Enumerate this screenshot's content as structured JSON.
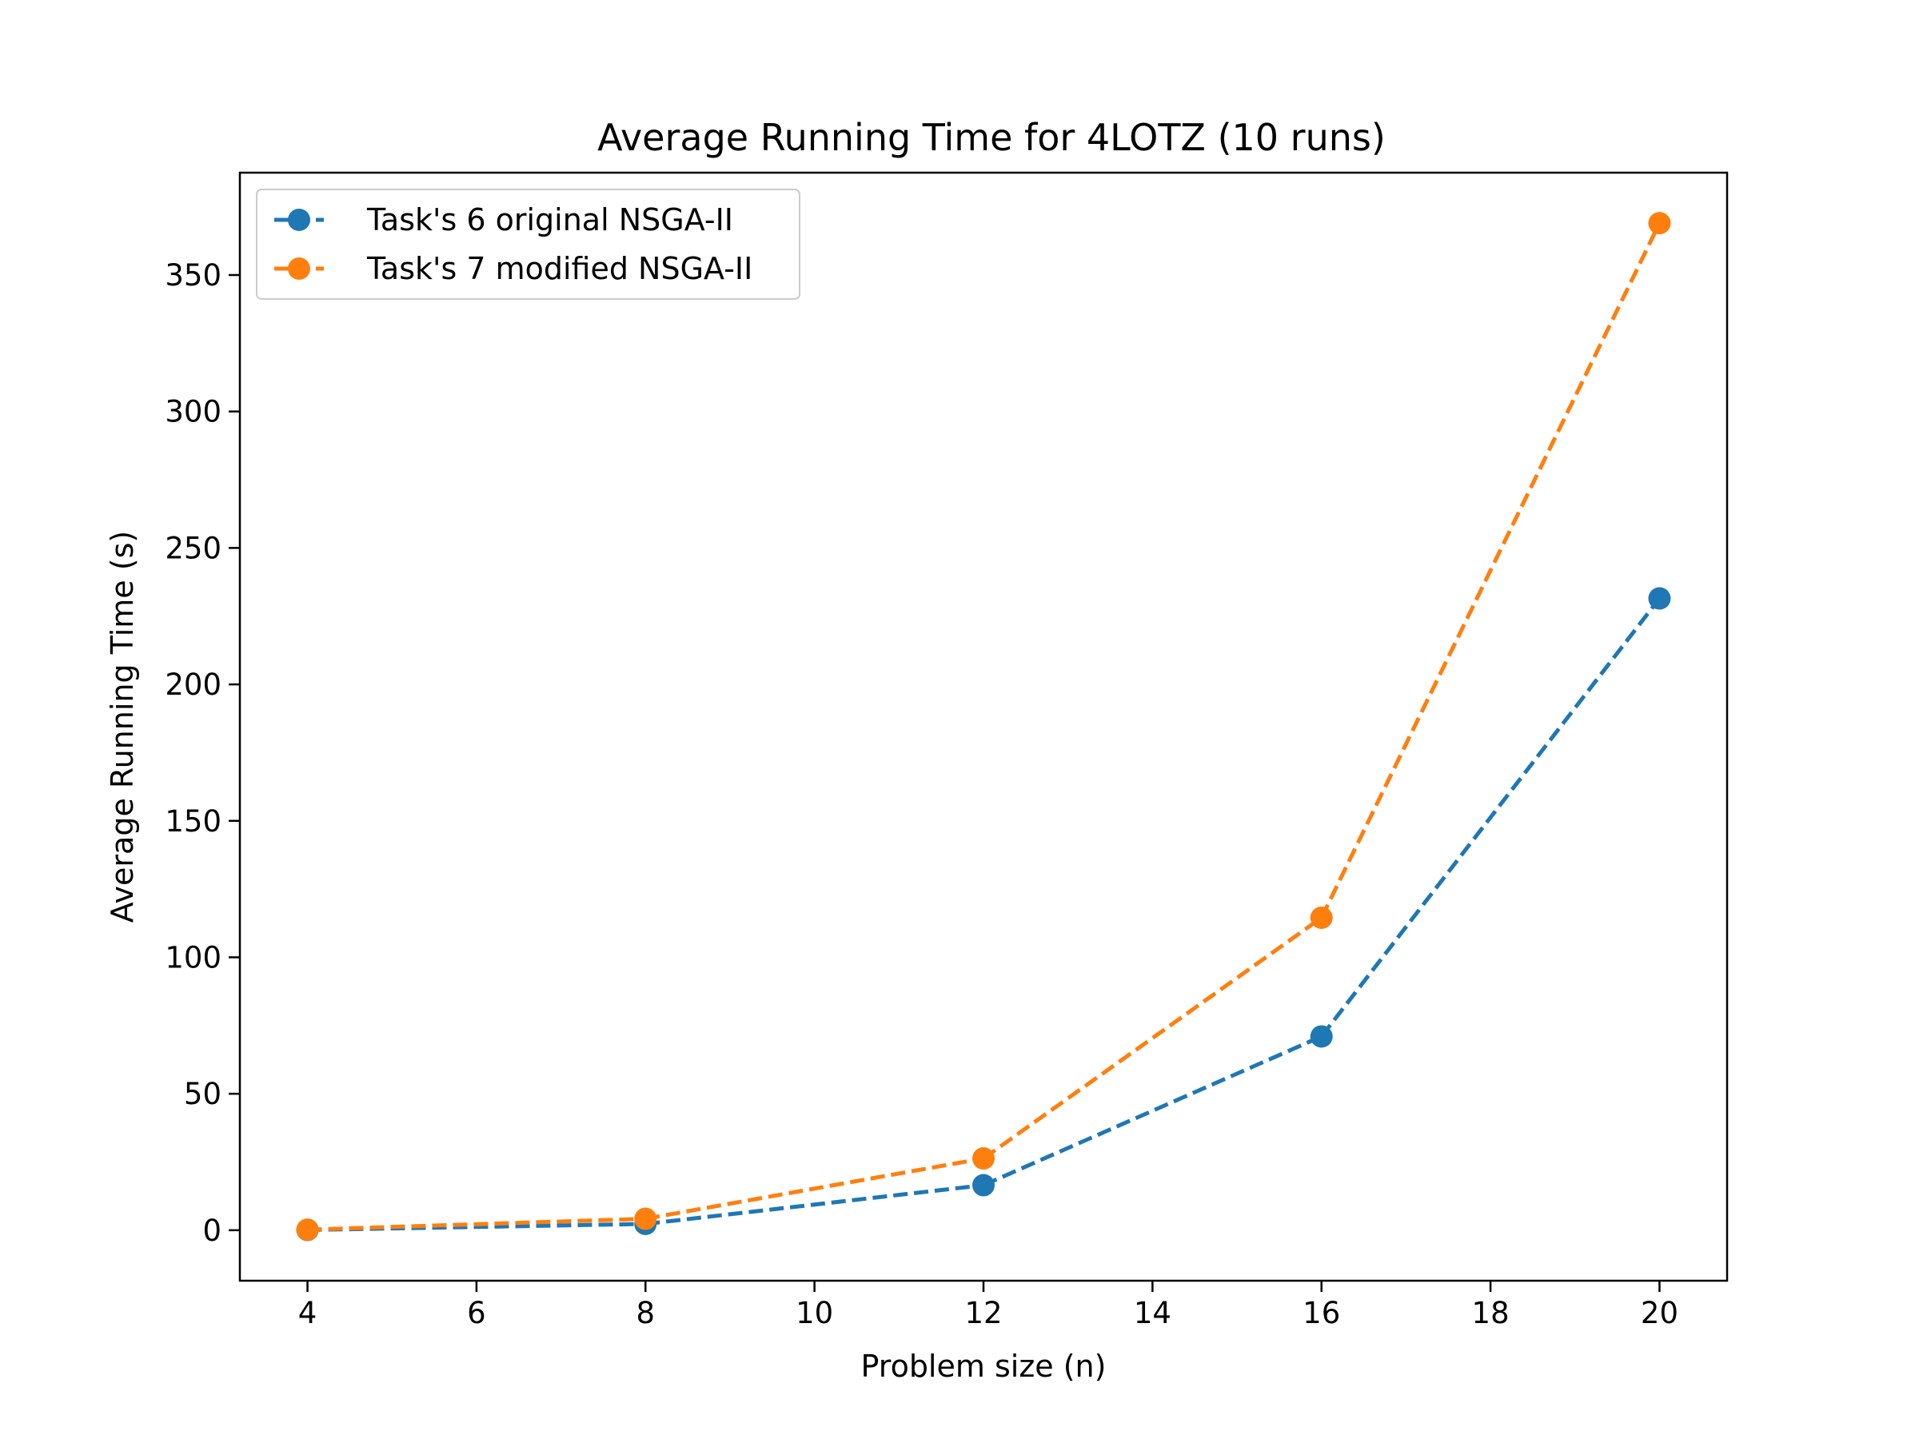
{
  "chart_data": {
    "type": "line",
    "title": "Average Running Time for 4LOTZ (10 runs)",
    "xlabel": "Problem size (n)",
    "ylabel": "Average Running Time (s)",
    "x": [
      4,
      8,
      12,
      16,
      20
    ],
    "xlim": [
      3.2,
      20.8
    ],
    "ylim": [
      -18.5,
      387.5
    ],
    "xticks": [
      4,
      6,
      8,
      10,
      12,
      14,
      16,
      18,
      20
    ],
    "yticks": [
      0,
      50,
      100,
      150,
      200,
      250,
      300,
      350
    ],
    "grid": false,
    "legend_position": "top-left",
    "series": [
      {
        "name": "Task's 6 original NSGA-II",
        "values": [
          0.1,
          2.3,
          16.5,
          71.0,
          231.5
        ],
        "color": "#1f77b4",
        "line_style": "dashed",
        "marker": "circle"
      },
      {
        "name": "Task's 7 modified NSGA-II",
        "values": [
          0.2,
          4.2,
          26.3,
          114.5,
          369.0
        ],
        "color": "#ff7f0e",
        "line_style": "dashed",
        "marker": "circle"
      }
    ]
  }
}
